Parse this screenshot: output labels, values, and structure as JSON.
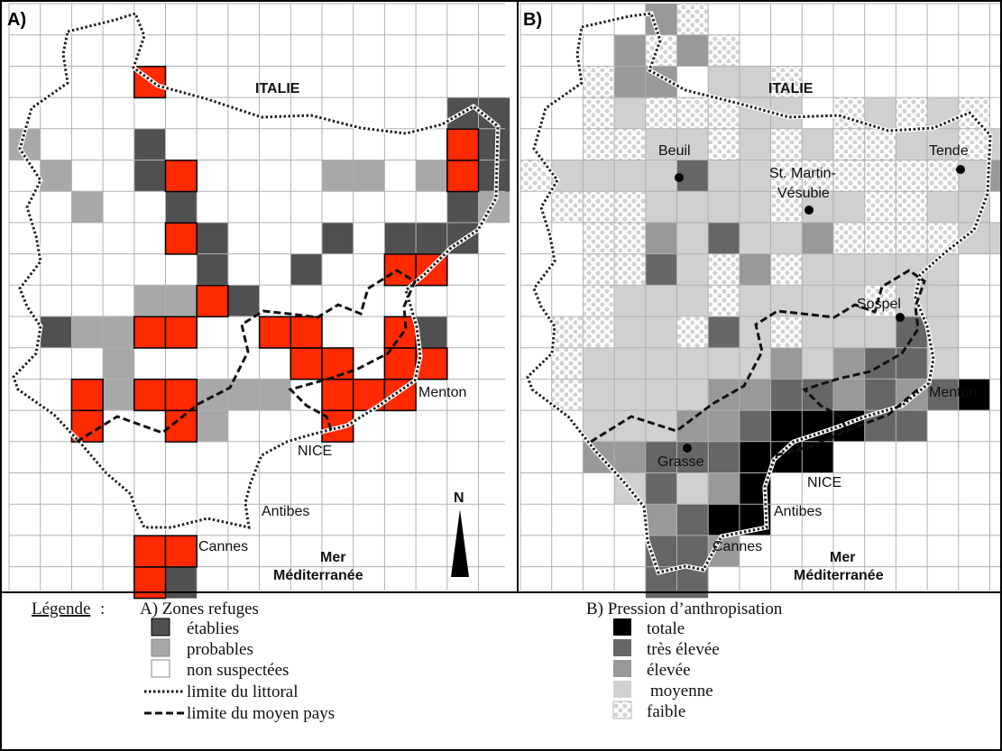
{
  "panel_a": {
    "letter": "A)",
    "labels": {
      "italie": "ITALIE",
      "menton": "Menton",
      "nice": "NICE",
      "antibes": "Antibes",
      "cannes": "Cannes",
      "mer": "Mer",
      "mediterranee": "Méditerranée",
      "north": "N"
    }
  },
  "panel_b": {
    "letter": "B)",
    "labels": {
      "italie": "ITALIE",
      "beuil": "Beuil",
      "st_martin_1": "St. Martin-",
      "st_martin_2": "Vésubie",
      "tende": "Tende",
      "sospel": "Sospel",
      "menton": "Menton",
      "grasse": "Grasse",
      "nice": "NICE",
      "antibes": "Antibes",
      "cannes": "Cannes",
      "mer": "Mer",
      "mediterranee": "Méditerranée"
    }
  },
  "legend": {
    "title": "Légende",
    "colon": ":",
    "a_title": "A) Zones refuges",
    "a_items": [
      "établies",
      "probables",
      "non suspectées"
    ],
    "a_lines": [
      "limite du littoral",
      "limite du moyen pays"
    ],
    "b_title": "B) Pression d’anthropisation",
    "b_items": [
      "totale",
      "très élevée",
      "élevée",
      "moyenne",
      "faible"
    ]
  },
  "colors": {
    "etablies": "#505050",
    "probables": "#a8a8a8",
    "refuge_highlight": "#ff2a00",
    "totale": "#000000",
    "tres_elevee": "#666666",
    "elevee": "#999999",
    "moyenne": "#d0d0d0",
    "faible": "#e6e6e6",
    "grid": "#b0b0b0"
  }
}
